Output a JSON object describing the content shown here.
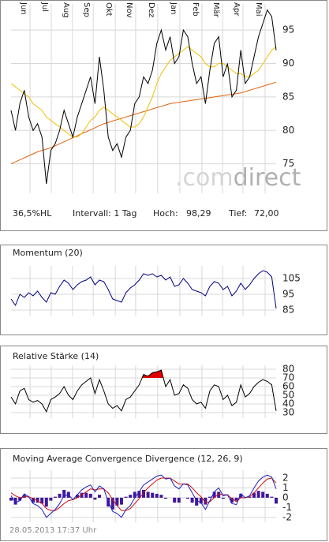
{
  "info": {
    "range": "36,5%HL",
    "interval": "Intervall: 1 Tag",
    "high_label": "Hoch:",
    "high": "98,29",
    "low_label": "Tief:",
    "low": "72,00"
  },
  "watermark": [
    ".com",
    "direct"
  ],
  "footer": "28.05.2013 17:37 Uhr",
  "chart_data": [
    {
      "type": "line",
      "xlim": [
        0,
        60
      ],
      "ylim": [
        70.6,
        98.9
      ],
      "yticks": [
        75,
        80,
        85,
        90,
        95
      ],
      "grid": true,
      "x": [
        0,
        1,
        2,
        3,
        4,
        5,
        6,
        7,
        8,
        9,
        10,
        11,
        12,
        13,
        14,
        15,
        16,
        17,
        18,
        19,
        20,
        21,
        22,
        23,
        24,
        25,
        26,
        27,
        28,
        29,
        30,
        31,
        32,
        33,
        34,
        35,
        36,
        37,
        38,
        39,
        40,
        41,
        42,
        43,
        44,
        45,
        46,
        47,
        48,
        49,
        50,
        51,
        52,
        53,
        54,
        55,
        56,
        57,
        58,
        59,
        60
      ],
      "xticks": [
        {
          "value": 4.3,
          "label": "Jun"
        },
        {
          "value": 9.1,
          "label": "Jul"
        },
        {
          "value": 13.9,
          "label": "Aug"
        },
        {
          "value": 18.6,
          "label": "Sep"
        },
        {
          "value": 23.6,
          "label": "Okt"
        },
        {
          "value": 28.2,
          "label": "Nov"
        },
        {
          "value": 33.2,
          "label": "Dez"
        },
        {
          "value": 38.2,
          "label": "Jan"
        },
        {
          "value": 43.2,
          "label": "Feb"
        },
        {
          "value": 47.9,
          "label": "Mär"
        },
        {
          "value": 52.5,
          "label": "Apr"
        },
        {
          "value": 57.5,
          "label": "Mai"
        }
      ],
      "series": [
        {
          "color": "#000000",
          "values": [
            83,
            80,
            84,
            86,
            82,
            80,
            81,
            79,
            72,
            77,
            78,
            80,
            83,
            81,
            79,
            82,
            84,
            86,
            88,
            84,
            91,
            86,
            79,
            77,
            78,
            76,
            79,
            80,
            84,
            85,
            88,
            87,
            89,
            93,
            95,
            92,
            94,
            90,
            91,
            95,
            94,
            90,
            87,
            88,
            84,
            89,
            93,
            94,
            88,
            90,
            85,
            86,
            92,
            87,
            88,
            91,
            94,
            96,
            98,
            97,
            92
          ]
        },
        {
          "color": "#f0c000",
          "values": [
            87,
            86.5,
            86,
            85.5,
            85,
            84,
            83.5,
            83,
            82,
            81.5,
            81,
            80.5,
            80,
            79.5,
            79,
            79,
            79.5,
            80.5,
            81.5,
            82,
            83,
            83.5,
            83,
            82.5,
            82,
            81.5,
            81,
            80.5,
            80.5,
            81,
            82,
            83.5,
            85,
            87,
            88.5,
            89.5,
            90.5,
            91,
            91.5,
            92,
            92.5,
            92,
            91.5,
            91,
            90,
            89.5,
            89.5,
            90,
            90,
            89.5,
            89,
            88.5,
            88.5,
            88,
            88,
            88.5,
            89,
            90,
            91,
            92,
            92.5
          ]
        },
        {
          "color": "#e06010",
          "values": [
            75,
            75.3,
            75.6,
            75.9,
            76.2,
            76.5,
            76.8,
            77,
            77.2,
            77.4,
            77.7,
            78,
            78.3,
            78.6,
            78.9,
            79.2,
            79.5,
            79.8,
            80.1,
            80.4,
            80.7,
            81,
            81.2,
            81.4,
            81.6,
            81.8,
            82,
            82.2,
            82.4,
            82.6,
            82.8,
            83,
            83.2,
            83.4,
            83.6,
            83.8,
            84,
            84.1,
            84.2,
            84.3,
            84.4,
            84.5,
            84.6,
            84.7,
            84.8,
            84.9,
            85,
            85.1,
            85.2,
            85.3,
            85.4,
            85.5,
            85.6,
            85.8,
            86,
            86.2,
            86.4,
            86.6,
            86.8,
            87,
            87.2
          ]
        }
      ]
    },
    {
      "type": "line",
      "title": "Momentum (20)",
      "xlim": [
        0,
        60
      ],
      "ylim": [
        81.5,
        113
      ],
      "yticks": [
        85,
        95,
        105
      ],
      "grid": true,
      "series": [
        {
          "color": "#000080",
          "values": [
            92,
            88,
            95,
            93,
            96,
            94,
            97,
            93,
            90,
            96,
            95,
            100,
            104,
            102,
            98,
            101,
            103,
            104,
            106,
            101,
            104,
            103,
            98,
            92,
            91,
            90,
            96,
            99,
            101,
            104,
            108,
            107,
            108,
            106,
            107,
            104,
            106,
            100,
            101,
            105,
            102,
            98,
            97,
            96,
            94,
            100,
            103,
            102,
            98,
            100,
            94,
            97,
            102,
            98,
            101,
            105,
            108,
            110,
            109,
            106,
            86
          ]
        }
      ]
    },
    {
      "type": "line",
      "title": "Relative Stärke (14)",
      "xlim": [
        0,
        60
      ],
      "ylim": [
        23.6,
        84.5
      ],
      "yticks": [
        30,
        40,
        50,
        60,
        70,
        80
      ],
      "grid": true,
      "fill_above": 70,
      "fill_color": "#e00000",
      "series": [
        {
          "color": "#000000",
          "values": [
            48,
            40,
            55,
            58,
            45,
            42,
            44,
            40,
            31,
            45,
            48,
            52,
            60,
            50,
            45,
            55,
            62,
            66,
            70,
            52,
            68,
            55,
            40,
            35,
            38,
            32,
            45,
            48,
            55,
            62,
            74,
            72,
            76,
            77,
            79,
            60,
            68,
            50,
            52,
            62,
            58,
            45,
            40,
            42,
            35,
            55,
            62,
            60,
            45,
            50,
            38,
            42,
            62,
            48,
            52,
            60,
            65,
            68,
            66,
            62,
            32
          ]
        }
      ]
    },
    {
      "type": "macd",
      "title": "Moving Average Convergence Divergence (12, 26, 9)",
      "xlim": [
        0,
        60
      ],
      "ylim": [
        -2.5,
        2.8
      ],
      "yticks": [
        -2,
        -1,
        0,
        1,
        2
      ],
      "grid": true,
      "series": [
        {
          "color": "#2020c0",
          "values": [
            0.2,
            -0.5,
            -0.3,
            0.4,
            0.1,
            -0.6,
            -0.8,
            -1.2,
            -2.0,
            -1.6,
            -1.2,
            -0.6,
            0.2,
            0.3,
            -0.2,
            0.3,
            0.8,
            1.1,
            1.3,
            0.6,
            1.2,
            0.9,
            -0.4,
            -1.4,
            -1.6,
            -2.0,
            -1.2,
            -0.8,
            0.0,
            0.6,
            1.3,
            1.6,
            1.9,
            2.2,
            2.3,
            1.9,
            2.0,
            1.2,
            0.9,
            1.4,
            1.3,
            0.5,
            -0.3,
            -0.5,
            -1.2,
            -0.3,
            0.6,
            1.0,
            0.2,
            0.3,
            -0.6,
            -0.7,
            0.4,
            0.0,
            0.2,
            1.0,
            1.7,
            2.1,
            2.3,
            2.1,
            0.9
          ]
        },
        {
          "color": "#d01010",
          "values": [
            0.5,
            0.2,
            0.0,
            0.1,
            0.1,
            -0.1,
            -0.3,
            -0.6,
            -1.1,
            -1.3,
            -1.3,
            -1.0,
            -0.6,
            -0.3,
            -0.2,
            0.0,
            0.3,
            0.6,
            0.9,
            0.8,
            0.9,
            0.9,
            0.5,
            -0.2,
            -0.8,
            -1.3,
            -1.3,
            -1.1,
            -0.6,
            -0.1,
            0.5,
            1.0,
            1.4,
            1.8,
            2.0,
            2.0,
            2.0,
            1.7,
            1.4,
            1.4,
            1.4,
            1.0,
            0.5,
            0.1,
            -0.5,
            -0.4,
            0.0,
            0.4,
            0.3,
            0.3,
            -0.1,
            -0.4,
            0.0,
            0.0,
            0.1,
            0.5,
            1.0,
            1.5,
            1.9,
            2.0,
            1.5
          ]
        },
        {
          "color": "#40189a",
          "values": [
            -0.3,
            -0.7,
            -0.3,
            0.3,
            0.0,
            -0.5,
            -0.5,
            -0.6,
            -0.9,
            -0.3,
            0.1,
            0.4,
            0.8,
            0.6,
            0.0,
            0.3,
            0.5,
            0.5,
            0.4,
            -0.2,
            0.3,
            0.0,
            -0.9,
            -1.2,
            -0.8,
            -0.7,
            0.1,
            0.3,
            0.6,
            0.7,
            0.8,
            0.6,
            0.5,
            0.4,
            0.3,
            -0.1,
            0.0,
            -0.5,
            -0.5,
            0.0,
            -0.1,
            -0.5,
            -0.8,
            -0.6,
            -0.7,
            0.1,
            0.6,
            0.6,
            -0.1,
            0.0,
            -0.5,
            -0.3,
            0.4,
            0.0,
            0.1,
            0.5,
            0.7,
            0.6,
            0.4,
            0.1,
            -0.6
          ]
        }
      ]
    }
  ]
}
